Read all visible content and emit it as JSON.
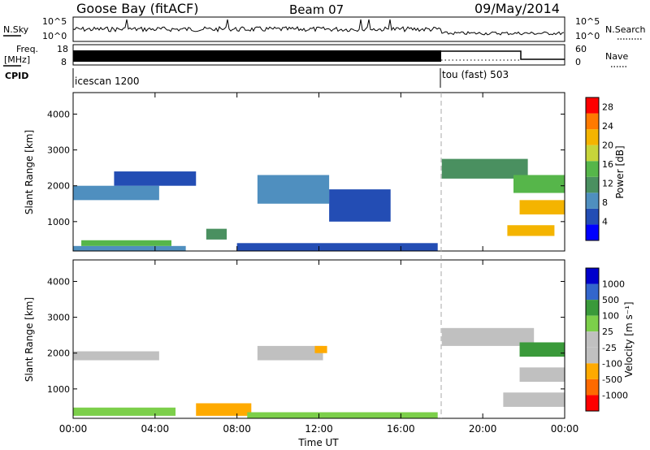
{
  "header": {
    "station": "Goose Bay (fitACF)",
    "beam": "Beam 07",
    "date": "09/May/2014"
  },
  "top_panels": {
    "nsky_label": "N.Sky",
    "nsearch_label": "N.Search",
    "noise_top_tick": "10^5",
    "noise_bottom_tick": "10^0",
    "freq_label_line1": "Freq.",
    "freq_label_line2": "[MHz]",
    "freq_ticks": [
      "18",
      "8"
    ],
    "nave_label": "Nave",
    "nave_ticks": [
      "60",
      "0"
    ],
    "cpid_label": "CPID",
    "cpid_modes": [
      {
        "name": "icescan 1200",
        "start_hour": 0
      },
      {
        "name": "tou (fast) 503",
        "start_hour": 18
      }
    ]
  },
  "colors": {
    "power": [
      "#0000ff",
      "#234db4",
      "#4f8fbf",
      "#4a9060",
      "#56b64a",
      "#c7d53a",
      "#f4b400",
      "#ff7a00",
      "#ff0000"
    ],
    "velocity": [
      "#ff0000",
      "#ff6a00",
      "#ffaa00",
      "#c0c0c0",
      "#c0c0c0",
      "#7ccf4a",
      "#3a9a3a",
      "#3366cc",
      "#0000cc"
    ]
  },
  "chart_data": [
    {
      "type": "heatmap",
      "name": "power",
      "ylabel": "Slant Range [km]",
      "ylim": [
        180,
        4600
      ],
      "yticks": [
        1000,
        2000,
        3000,
        4000
      ],
      "xticks": [
        "00:00",
        "04:00",
        "08:00",
        "12:00",
        "16:00",
        "20:00",
        "00:00"
      ],
      "xlim_hours": [
        0,
        24
      ],
      "colorbar_label": "Power [dB]",
      "colorbar_ticks": [
        28,
        24,
        20,
        16,
        12,
        8,
        4
      ],
      "colorbar_range": [
        0,
        30
      ],
      "cells": [
        {
          "t0": 0,
          "t1": 5.5,
          "r0": 180,
          "r1": 320,
          "value": 8
        },
        {
          "t0": 0.4,
          "t1": 4.8,
          "r0": 320,
          "r1": 480,
          "value": 14
        },
        {
          "t0": 0,
          "t1": 4.2,
          "r0": 1600,
          "r1": 2000,
          "value": 7
        },
        {
          "t0": 2.0,
          "t1": 6.0,
          "r0": 2000,
          "r1": 2400,
          "value": 6
        },
        {
          "t0": 6.5,
          "t1": 7.5,
          "r0": 500,
          "r1": 800,
          "value": 10
        },
        {
          "t0": 9.0,
          "t1": 12.5,
          "r0": 1500,
          "r1": 2300,
          "value": 7
        },
        {
          "t0": 12.5,
          "t1": 15.5,
          "r0": 1000,
          "r1": 1900,
          "value": 6
        },
        {
          "t0": 8.0,
          "t1": 17.8,
          "r0": 180,
          "r1": 400,
          "value": 6
        },
        {
          "t0": 18.0,
          "t1": 22.2,
          "r0": 2200,
          "r1": 2750,
          "value": 11
        },
        {
          "t0": 21.5,
          "t1": 24,
          "r0": 1800,
          "r1": 2300,
          "value": 14
        },
        {
          "t0": 21.8,
          "t1": 24,
          "r0": 1200,
          "r1": 1600,
          "value": 21
        },
        {
          "t0": 21.2,
          "t1": 23.5,
          "r0": 600,
          "r1": 900,
          "value": 22
        }
      ]
    },
    {
      "type": "heatmap",
      "name": "velocity",
      "ylabel": "Slant Range [km]",
      "xlabel": "Time UT",
      "ylim": [
        180,
        4600
      ],
      "yticks": [
        1000,
        2000,
        3000,
        4000
      ],
      "xticks": [
        "00:00",
        "04:00",
        "08:00",
        "12:00",
        "16:00",
        "20:00",
        "00:00"
      ],
      "xlim_hours": [
        0,
        24
      ],
      "colorbar_label": "Velocity [m s⁻¹]",
      "colorbar_ticks": [
        "1000",
        "500",
        "100",
        "25",
        "-25",
        "-100",
        "-500",
        "-1000"
      ],
      "cells": [
        {
          "t0": 0,
          "t1": 5.0,
          "r0": 250,
          "r1": 480,
          "value": 100
        },
        {
          "t0": 0,
          "t1": 4.2,
          "r0": 1800,
          "r1": 2050,
          "value": 0
        },
        {
          "t0": 6.0,
          "t1": 8.7,
          "r0": 250,
          "r1": 600,
          "value": -300
        },
        {
          "t0": 9.0,
          "t1": 12.2,
          "r0": 1800,
          "r1": 2200,
          "value": 0
        },
        {
          "t0": 11.8,
          "t1": 12.4,
          "r0": 2000,
          "r1": 2200,
          "value": -150
        },
        {
          "t0": 8.5,
          "t1": 17.8,
          "r0": 180,
          "r1": 350,
          "value": 80
        },
        {
          "t0": 18.0,
          "t1": 22.5,
          "r0": 2200,
          "r1": 2700,
          "value": 0
        },
        {
          "t0": 21.8,
          "t1": 24,
          "r0": 1900,
          "r1": 2300,
          "value": 300
        },
        {
          "t0": 21.8,
          "t1": 24,
          "r0": 1200,
          "r1": 1600,
          "value": 0
        },
        {
          "t0": 21.0,
          "t1": 24,
          "r0": 500,
          "r1": 900,
          "value": 0
        }
      ]
    }
  ]
}
